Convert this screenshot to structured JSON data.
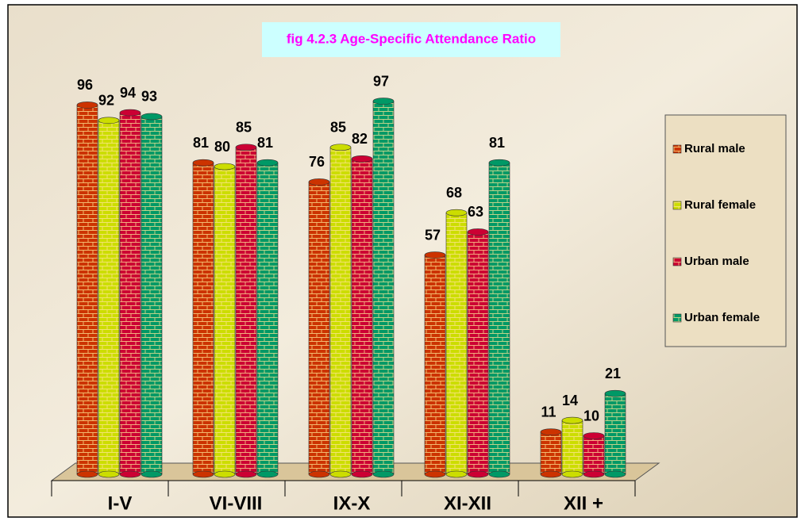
{
  "chart_data": {
    "type": "bar",
    "title": "fig 4.2.3 Age-Specific Attendance Ratio",
    "categories": [
      "I-V",
      "VI-VIII",
      "IX-X",
      "XI-XII",
      "XII +"
    ],
    "series": [
      {
        "name": "Rural male",
        "color": "#cc3300",
        "values": [
          96,
          81,
          76,
          57,
          11
        ]
      },
      {
        "name": "Rural female",
        "color": "#ccdd00",
        "values": [
          92,
          80,
          85,
          68,
          14
        ]
      },
      {
        "name": "Urban male",
        "color": "#cc0033",
        "values": [
          94,
          85,
          82,
          63,
          10
        ]
      },
      {
        "name": "Urban female",
        "color": "#009966",
        "values": [
          93,
          81,
          97,
          81,
          21
        ]
      }
    ],
    "legend": "right"
  }
}
